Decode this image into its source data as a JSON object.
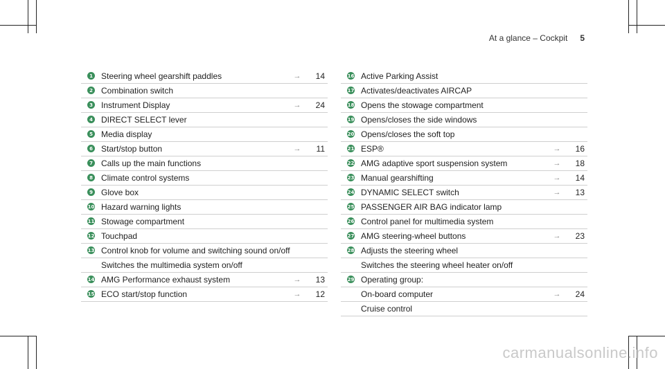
{
  "header": {
    "title": "At a glance – Cockpit",
    "page_number": "5"
  },
  "left_items": [
    {
      "num": "1",
      "label": "Steering wheel gearshift paddles",
      "arrow": "→",
      "page": "14"
    },
    {
      "num": "2",
      "label": "Combination switch",
      "arrow": "",
      "page": ""
    },
    {
      "num": "3",
      "label": "Instrument Display",
      "arrow": "→",
      "page": "24"
    },
    {
      "num": "4",
      "label": "DIRECT SELECT lever",
      "arrow": "",
      "page": ""
    },
    {
      "num": "5",
      "label": "Media display",
      "arrow": "",
      "page": ""
    },
    {
      "num": "6",
      "label": "Start/stop button",
      "arrow": "→",
      "page": "11"
    },
    {
      "num": "7",
      "label": "Calls up the main functions",
      "arrow": "",
      "page": ""
    },
    {
      "num": "8",
      "label": "Climate control systems",
      "arrow": "",
      "page": ""
    },
    {
      "num": "9",
      "label": "Glove box",
      "arrow": "",
      "page": ""
    },
    {
      "num": "10",
      "label": "Hazard warning lights",
      "arrow": "",
      "page": ""
    },
    {
      "num": "11",
      "label": "Stowage compartment",
      "arrow": "",
      "page": ""
    },
    {
      "num": "12",
      "label": "Touchpad",
      "arrow": "",
      "page": ""
    },
    {
      "num": "13",
      "label": "Control knob for volume and switching sound on/off",
      "arrow": "",
      "page": ""
    },
    {
      "num": "",
      "label": "Switches the multimedia system on/off",
      "arrow": "",
      "page": ""
    },
    {
      "num": "14",
      "label": "AMG Performance exhaust system",
      "arrow": "→",
      "page": "13"
    },
    {
      "num": "15",
      "label": "ECO start/stop function",
      "arrow": "→",
      "page": "12"
    }
  ],
  "right_items": [
    {
      "num": "16",
      "label": "Active Parking Assist",
      "arrow": "",
      "page": ""
    },
    {
      "num": "17",
      "label": "Activates/deactivates AIRCAP",
      "arrow": "",
      "page": ""
    },
    {
      "num": "18",
      "label": "Opens the stowage compartment",
      "arrow": "",
      "page": ""
    },
    {
      "num": "19",
      "label": "Opens/closes the side windows",
      "arrow": "",
      "page": ""
    },
    {
      "num": "20",
      "label": "Opens/closes the soft top",
      "arrow": "",
      "page": ""
    },
    {
      "num": "21",
      "label": "ESP®",
      "arrow": "→",
      "page": "16"
    },
    {
      "num": "22",
      "label": "AMG adaptive sport suspension system",
      "arrow": "→",
      "page": "18"
    },
    {
      "num": "23",
      "label": "Manual gearshifting",
      "arrow": "→",
      "page": "14"
    },
    {
      "num": "24",
      "label": "DYNAMIC SELECT switch",
      "arrow": "→",
      "page": "13"
    },
    {
      "num": "25",
      "label": "PASSENGER AIR BAG indicator lamp",
      "arrow": "",
      "page": ""
    },
    {
      "num": "26",
      "label": "Control panel for multimedia system",
      "arrow": "",
      "page": ""
    },
    {
      "num": "27",
      "label": "AMG steering-wheel buttons",
      "arrow": "→",
      "page": "23"
    },
    {
      "num": "28",
      "label": "Adjusts the steering wheel",
      "arrow": "",
      "page": ""
    },
    {
      "num": "",
      "label": "Switches the steering wheel heater on/off",
      "arrow": "",
      "page": ""
    },
    {
      "num": "29",
      "label": "Operating group:",
      "arrow": "",
      "page": ""
    },
    {
      "num": "",
      "label": "On-board computer",
      "arrow": "→",
      "page": "24"
    },
    {
      "num": "",
      "label": "Cruise control",
      "arrow": "",
      "page": ""
    }
  ],
  "watermark": "carmanualsonline.info"
}
